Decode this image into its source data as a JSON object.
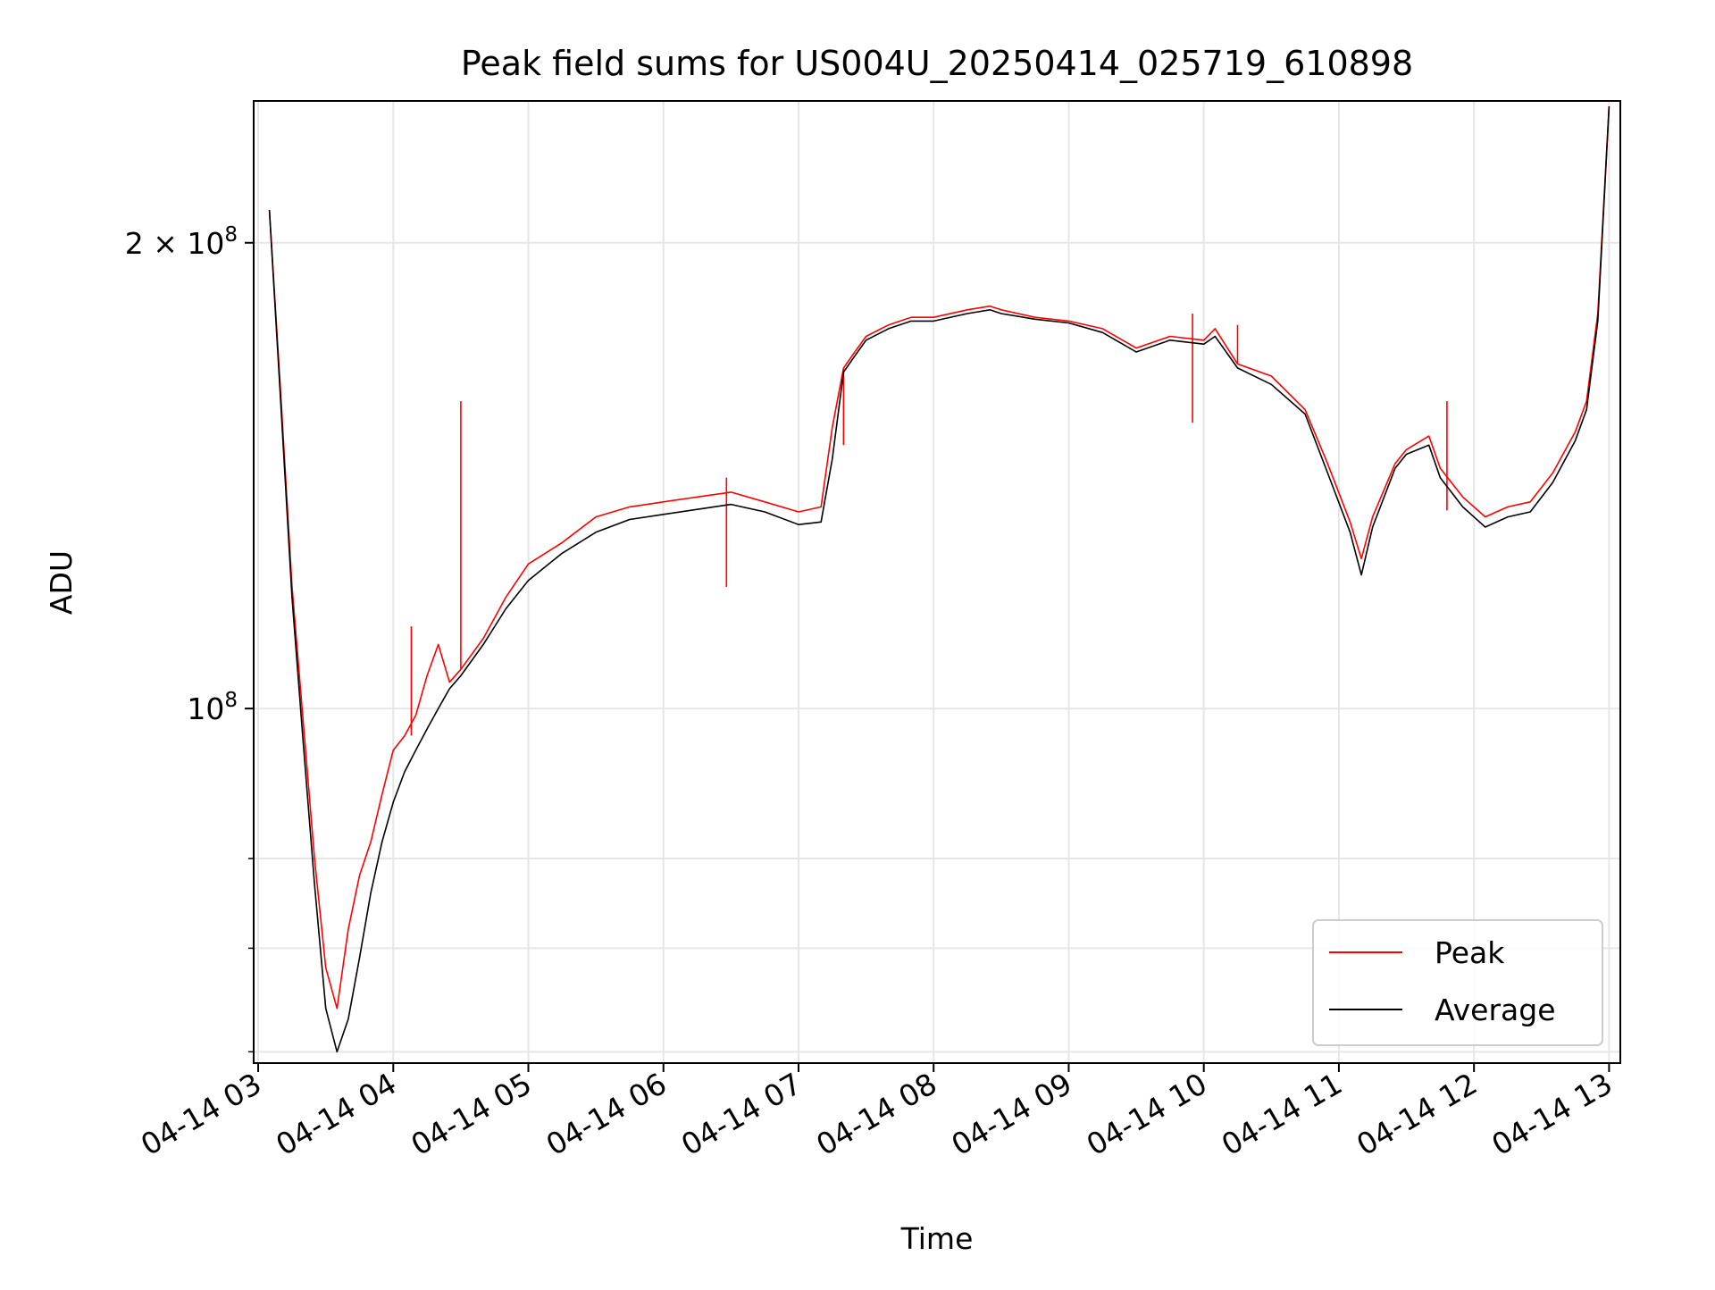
{
  "chart_data": {
    "type": "line",
    "title": "Peak field sums for US004U_20250414_025719_610898",
    "xlabel": "Time",
    "ylabel": "ADU",
    "yscale": "log",
    "grid": true,
    "legend_position": "lower-right",
    "xlim": [
      "2025-04-14 02:58",
      "2025-04-14 13:05"
    ],
    "ylim": [
      59000000,
      247000000
    ],
    "x_ticks": [
      {
        "value": "2025-04-14 03:00",
        "label": "04-14 03"
      },
      {
        "value": "2025-04-14 04:00",
        "label": "04-14 04"
      },
      {
        "value": "2025-04-14 05:00",
        "label": "04-14 05"
      },
      {
        "value": "2025-04-14 06:00",
        "label": "04-14 06"
      },
      {
        "value": "2025-04-14 07:00",
        "label": "04-14 07"
      },
      {
        "value": "2025-04-14 08:00",
        "label": "04-14 08"
      },
      {
        "value": "2025-04-14 09:00",
        "label": "04-14 09"
      },
      {
        "value": "2025-04-14 10:00",
        "label": "04-14 10"
      },
      {
        "value": "2025-04-14 11:00",
        "label": "04-14 11"
      },
      {
        "value": "2025-04-14 12:00",
        "label": "04-14 12"
      },
      {
        "value": "2025-04-14 13:00",
        "label": "04-14 13"
      }
    ],
    "y_major_ticks": [
      {
        "value": 100000000,
        "label_base": "10",
        "label_exp": "8"
      },
      {
        "value": 200000000,
        "label_base": "2 × 10",
        "label_exp": "8"
      }
    ],
    "y_minor_ticks": [
      60000000,
      70000000,
      80000000
    ],
    "series": [
      {
        "name": "Peak",
        "color": "#ff0000",
        "x": [
          "2025-04-14 03:05",
          "2025-04-14 03:10",
          "2025-04-14 03:15",
          "2025-04-14 03:20",
          "2025-04-14 03:25",
          "2025-04-14 03:30",
          "2025-04-14 03:35",
          "2025-04-14 03:40",
          "2025-04-14 03:45",
          "2025-04-14 03:50",
          "2025-04-14 03:55",
          "2025-04-14 04:00",
          "2025-04-14 04:05",
          "2025-04-14 04:10",
          "2025-04-14 04:15",
          "2025-04-14 04:20",
          "2025-04-14 04:25",
          "2025-04-14 04:30",
          "2025-04-14 04:40",
          "2025-04-14 04:50",
          "2025-04-14 05:00",
          "2025-04-14 05:15",
          "2025-04-14 05:30",
          "2025-04-14 05:45",
          "2025-04-14 06:00",
          "2025-04-14 06:15",
          "2025-04-14 06:30",
          "2025-04-14 06:45",
          "2025-04-14 07:00",
          "2025-04-14 07:10",
          "2025-04-14 07:15",
          "2025-04-14 07:20",
          "2025-04-14 07:25",
          "2025-04-14 07:30",
          "2025-04-14 07:40",
          "2025-04-14 07:50",
          "2025-04-14 08:00",
          "2025-04-14 08:15",
          "2025-04-14 08:25",
          "2025-04-14 08:30",
          "2025-04-14 08:45",
          "2025-04-14 09:00",
          "2025-04-14 09:15",
          "2025-04-14 09:30",
          "2025-04-14 09:45",
          "2025-04-14 10:00",
          "2025-04-14 10:05",
          "2025-04-14 10:15",
          "2025-04-14 10:30",
          "2025-04-14 10:45",
          "2025-04-14 10:55",
          "2025-04-14 11:05",
          "2025-04-14 11:10",
          "2025-04-14 11:15",
          "2025-04-14 11:25",
          "2025-04-14 11:30",
          "2025-04-14 11:40",
          "2025-04-14 11:45",
          "2025-04-14 11:55",
          "2025-04-14 12:05",
          "2025-04-14 12:15",
          "2025-04-14 12:25",
          "2025-04-14 12:35",
          "2025-04-14 12:45",
          "2025-04-14 12:50",
          "2025-04-14 12:55",
          "2025-04-14 13:00"
        ],
        "y": [
          210000000,
          160000000,
          120000000,
          98000000,
          80000000,
          68000000,
          64000000,
          72000000,
          78000000,
          82000000,
          88000000,
          94000000,
          96000000,
          99000000,
          105000000,
          110000000,
          104000000,
          106000000,
          111000000,
          118000000,
          124000000,
          128000000,
          133000000,
          135000000,
          136000000,
          137000000,
          138000000,
          136000000,
          134000000,
          135000000,
          152000000,
          166000000,
          170000000,
          174000000,
          177000000,
          179000000,
          179000000,
          181000000,
          182000000,
          181000000,
          179000000,
          178000000,
          176000000,
          171000000,
          174000000,
          173000000,
          176000000,
          167000000,
          164000000,
          156000000,
          144000000,
          132000000,
          125000000,
          133000000,
          144000000,
          147000000,
          150000000,
          143000000,
          137000000,
          133000000,
          135000000,
          136000000,
          142000000,
          151000000,
          158000000,
          180000000,
          245000000
        ],
        "spikes": [
          {
            "x": "2025-04-14 04:30",
            "y": 158000000
          },
          {
            "x": "2025-04-14 04:08",
            "y": 113000000
          },
          {
            "x": "2025-04-14 06:28",
            "y": 141000000
          },
          {
            "x": "2025-04-14 07:20",
            "y": 148000000
          },
          {
            "x": "2025-04-14 09:55",
            "y": 180000000
          },
          {
            "x": "2025-04-14 10:15",
            "y": 177000000
          },
          {
            "x": "2025-04-14 11:48",
            "y": 158000000
          }
        ]
      },
      {
        "name": "Average",
        "color": "#000000",
        "x": [
          "2025-04-14 03:05",
          "2025-04-14 03:10",
          "2025-04-14 03:15",
          "2025-04-14 03:20",
          "2025-04-14 03:25",
          "2025-04-14 03:30",
          "2025-04-14 03:35",
          "2025-04-14 03:40",
          "2025-04-14 03:45",
          "2025-04-14 03:50",
          "2025-04-14 03:55",
          "2025-04-14 04:00",
          "2025-04-14 04:05",
          "2025-04-14 04:10",
          "2025-04-14 04:15",
          "2025-04-14 04:20",
          "2025-04-14 04:25",
          "2025-04-14 04:30",
          "2025-04-14 04:40",
          "2025-04-14 04:50",
          "2025-04-14 05:00",
          "2025-04-14 05:15",
          "2025-04-14 05:30",
          "2025-04-14 05:45",
          "2025-04-14 06:00",
          "2025-04-14 06:15",
          "2025-04-14 06:30",
          "2025-04-14 06:45",
          "2025-04-14 07:00",
          "2025-04-14 07:10",
          "2025-04-14 07:15",
          "2025-04-14 07:20",
          "2025-04-14 07:25",
          "2025-04-14 07:30",
          "2025-04-14 07:40",
          "2025-04-14 07:50",
          "2025-04-14 08:00",
          "2025-04-14 08:15",
          "2025-04-14 08:25",
          "2025-04-14 08:30",
          "2025-04-14 08:45",
          "2025-04-14 09:00",
          "2025-04-14 09:15",
          "2025-04-14 09:30",
          "2025-04-14 09:45",
          "2025-04-14 10:00",
          "2025-04-14 10:05",
          "2025-04-14 10:15",
          "2025-04-14 10:30",
          "2025-04-14 10:45",
          "2025-04-14 10:55",
          "2025-04-14 11:05",
          "2025-04-14 11:10",
          "2025-04-14 11:15",
          "2025-04-14 11:25",
          "2025-04-14 11:30",
          "2025-04-14 11:40",
          "2025-04-14 11:45",
          "2025-04-14 11:55",
          "2025-04-14 12:05",
          "2025-04-14 12:15",
          "2025-04-14 12:25",
          "2025-04-14 12:35",
          "2025-04-14 12:45",
          "2025-04-14 12:50",
          "2025-04-14 12:55",
          "2025-04-14 13:00"
        ],
        "y": [
          210000000,
          158000000,
          118000000,
          95000000,
          77000000,
          64000000,
          60000000,
          63000000,
          69000000,
          76000000,
          82000000,
          87000000,
          91000000,
          94000000,
          97000000,
          100000000,
          103000000,
          105000000,
          110000000,
          116000000,
          121000000,
          126000000,
          130000000,
          132500000,
          133500000,
          134500000,
          135500000,
          134000000,
          131500000,
          132000000,
          145000000,
          165000000,
          169000000,
          173000000,
          176000000,
          178000000,
          178000000,
          180000000,
          181000000,
          180000000,
          178500000,
          177500000,
          175000000,
          170000000,
          173000000,
          172000000,
          174000000,
          166000000,
          162000000,
          155000000,
          142000000,
          130000000,
          122000000,
          131000000,
          143000000,
          146000000,
          148000000,
          141000000,
          135000000,
          131000000,
          133000000,
          134000000,
          140000000,
          149000000,
          156000000,
          178000000,
          245000000
        ]
      }
    ]
  }
}
